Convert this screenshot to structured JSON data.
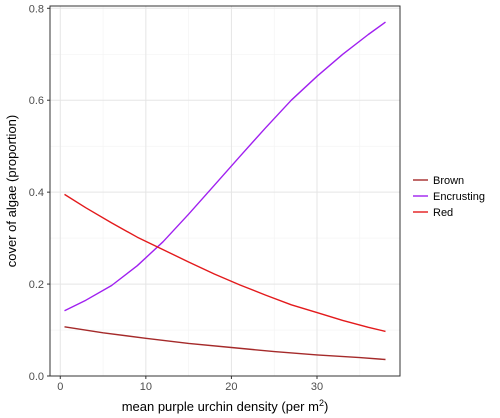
{
  "chart_data": {
    "type": "line",
    "xlabel": "mean purple urchin density (per m",
    "xlabel_sup": "2",
    "xlabel_close": ")",
    "ylabel": "cover of algae (proportion)",
    "xlim": [
      -1.2,
      39.7
    ],
    "ylim": [
      0,
      0.805
    ],
    "x_ticks": [
      0,
      10,
      20,
      30
    ],
    "y_ticks": [
      0.0,
      0.2,
      0.4,
      0.6,
      0.8
    ],
    "x_tick_labels": [
      "0",
      "10",
      "20",
      "30"
    ],
    "y_tick_labels": [
      "0.0",
      "0.2",
      "0.4",
      "0.6",
      "0.8"
    ],
    "grid": true,
    "legend_position": "right",
    "series": [
      {
        "name": "Brown",
        "color": "#a52a2a",
        "points": [
          [
            0.5,
            0.107
          ],
          [
            5,
            0.094
          ],
          [
            10,
            0.082
          ],
          [
            15,
            0.071
          ],
          [
            20,
            0.062
          ],
          [
            25,
            0.053
          ],
          [
            30,
            0.046
          ],
          [
            35,
            0.04
          ],
          [
            38,
            0.036
          ]
        ]
      },
      {
        "name": "Encrusting",
        "color": "#a020f0",
        "points": [
          [
            0.5,
            0.142
          ],
          [
            3,
            0.165
          ],
          [
            6,
            0.197
          ],
          [
            9,
            0.24
          ],
          [
            12,
            0.292
          ],
          [
            15,
            0.352
          ],
          [
            18,
            0.415
          ],
          [
            21,
            0.478
          ],
          [
            24,
            0.54
          ],
          [
            27,
            0.6
          ],
          [
            30,
            0.652
          ],
          [
            33,
            0.7
          ],
          [
            36,
            0.743
          ],
          [
            38,
            0.77
          ]
        ]
      },
      {
        "name": "Red",
        "color": "#e31a1c",
        "points": [
          [
            0.5,
            0.395
          ],
          [
            3,
            0.366
          ],
          [
            6,
            0.333
          ],
          [
            9,
            0.302
          ],
          [
            12,
            0.275
          ],
          [
            15,
            0.248
          ],
          [
            18,
            0.222
          ],
          [
            21,
            0.198
          ],
          [
            24,
            0.176
          ],
          [
            27,
            0.155
          ],
          [
            30,
            0.138
          ],
          [
            33,
            0.121
          ],
          [
            36,
            0.106
          ],
          [
            38,
            0.097
          ]
        ]
      }
    ]
  }
}
